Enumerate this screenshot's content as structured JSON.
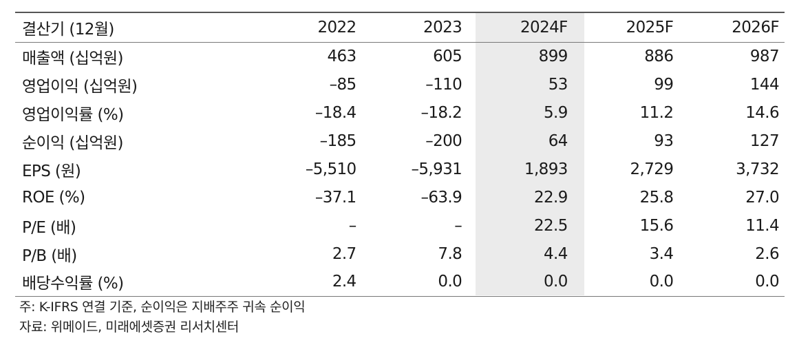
{
  "table": {
    "headers": [
      "결산기 (12월)",
      "2022",
      "2023",
      "2024F",
      "2025F",
      "2026F"
    ],
    "rows": [
      [
        "매출액 (십억원)",
        "463",
        "605",
        "899",
        "886",
        "987"
      ],
      [
        "영업이익 (십억원)",
        "–85",
        "–110",
        "53",
        "99",
        "144"
      ],
      [
        "영업이익률 (%)",
        "–18.4",
        "–18.2",
        "5.9",
        "11.2",
        "14.6"
      ],
      [
        "순이익 (십억원)",
        "–185",
        "–200",
        "64",
        "93",
        "127"
      ],
      [
        "EPS (원)",
        "–5,510",
        "–5,931",
        "1,893",
        "2,729",
        "3,732"
      ],
      [
        "ROE (%)",
        "–37.1",
        "–63.9",
        "22.9",
        "25.8",
        "27.0"
      ],
      [
        "P/E (배)",
        "–",
        "–",
        "22.5",
        "15.6",
        "11.4"
      ],
      [
        "P/B (배)",
        "2.7",
        "7.8",
        "4.4",
        "3.4",
        "2.6"
      ],
      [
        "배당수익률 (%)",
        "2.4",
        "0.0",
        "0.0",
        "0.0",
        "0.0"
      ]
    ],
    "highlight_color": "#ebebeb"
  },
  "notes": {
    "note": "주: K-IFRS 연결 기준, 순이익은 지배주주 귀속 순이익",
    "source": "자료: 위메이드, 미래에셋증권 리서치센터"
  }
}
